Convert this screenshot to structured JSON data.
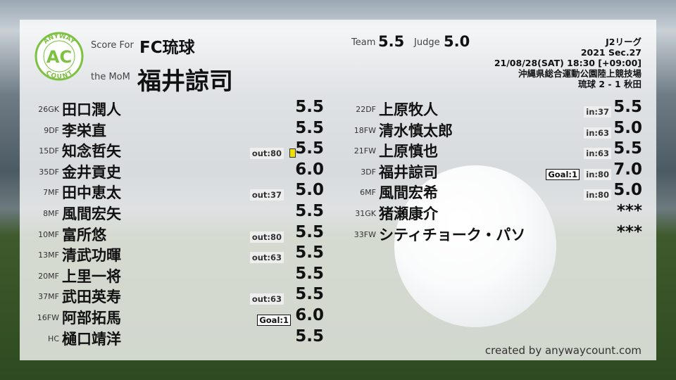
{
  "header": {
    "score_for_label": "Score For",
    "team": "FC琉球",
    "mom_label": "the MoM",
    "mom_name": "福井諒司",
    "team_label": "Team",
    "team_score": "5.5",
    "judge_label": "Judge",
    "judge_score": "5.0",
    "logo_text": {
      "top": "ANYWAY",
      "middle": "AC",
      "bottom": "COUNT"
    }
  },
  "match": {
    "league": "J2リーグ",
    "section": "2021 Sec.27",
    "datetime": "21/08/28(SAT) 18:30 [+09:00]",
    "venue": "沖縄県総合運動公園陸上競技場",
    "result": "琉球 2 - 1 秋田"
  },
  "colors": {
    "logo_green": "#7dc142",
    "yellow_card": "#f0e000"
  },
  "starters": [
    {
      "num": "26",
      "pos": "GK",
      "name": "田口潤人",
      "score": "5.5"
    },
    {
      "num": "9",
      "pos": "DF",
      "name": "李栄直",
      "score": "5.5"
    },
    {
      "num": "15",
      "pos": "DF",
      "name": "知念哲矢",
      "score": "5.5",
      "sub": "out:80",
      "yellow": true
    },
    {
      "num": "35",
      "pos": "DF",
      "name": "金井貢史",
      "score": "6.0"
    },
    {
      "num": "7",
      "pos": "MF",
      "name": "田中恵太",
      "score": "5.0",
      "sub": "out:37"
    },
    {
      "num": "8",
      "pos": "MF",
      "name": "風間宏矢",
      "score": "5.5"
    },
    {
      "num": "10",
      "pos": "MF",
      "name": "富所悠",
      "score": "5.5",
      "sub": "out:80"
    },
    {
      "num": "13",
      "pos": "MF",
      "name": "清武功暉",
      "score": "5.5",
      "sub": "out:63"
    },
    {
      "num": "20",
      "pos": "MF",
      "name": "上里一将",
      "score": "5.5"
    },
    {
      "num": "37",
      "pos": "MF",
      "name": "武田英寿",
      "score": "5.5",
      "sub": "out:63"
    },
    {
      "num": "16",
      "pos": "FW",
      "name": "阿部拓馬",
      "score": "6.0",
      "goal": "Goal:1"
    },
    {
      "num": "",
      "pos": "HC",
      "name": "樋口靖洋",
      "score": "5.5"
    }
  ],
  "subs": [
    {
      "num": "22",
      "pos": "DF",
      "name": "上原牧人",
      "score": "5.5",
      "sub": "in:37"
    },
    {
      "num": "18",
      "pos": "FW",
      "name": "清水慎太郎",
      "score": "5.0",
      "sub": "in:63"
    },
    {
      "num": "21",
      "pos": "FW",
      "name": "上原慎也",
      "score": "5.5",
      "sub": "in:63"
    },
    {
      "num": "3",
      "pos": "DF",
      "name": "福井諒司",
      "score": "7.0",
      "sub": "in:80",
      "goal": "Goal:1"
    },
    {
      "num": "6",
      "pos": "MF",
      "name": "風間宏希",
      "score": "5.0",
      "sub": "in:80"
    },
    {
      "num": "31",
      "pos": "GK",
      "name": "猪瀬康介",
      "score": "***"
    },
    {
      "num": "33",
      "pos": "FW",
      "name": "シティチョーク・パソ",
      "score": "***"
    }
  ],
  "footer": {
    "credit": "created by anywaycount.com"
  }
}
